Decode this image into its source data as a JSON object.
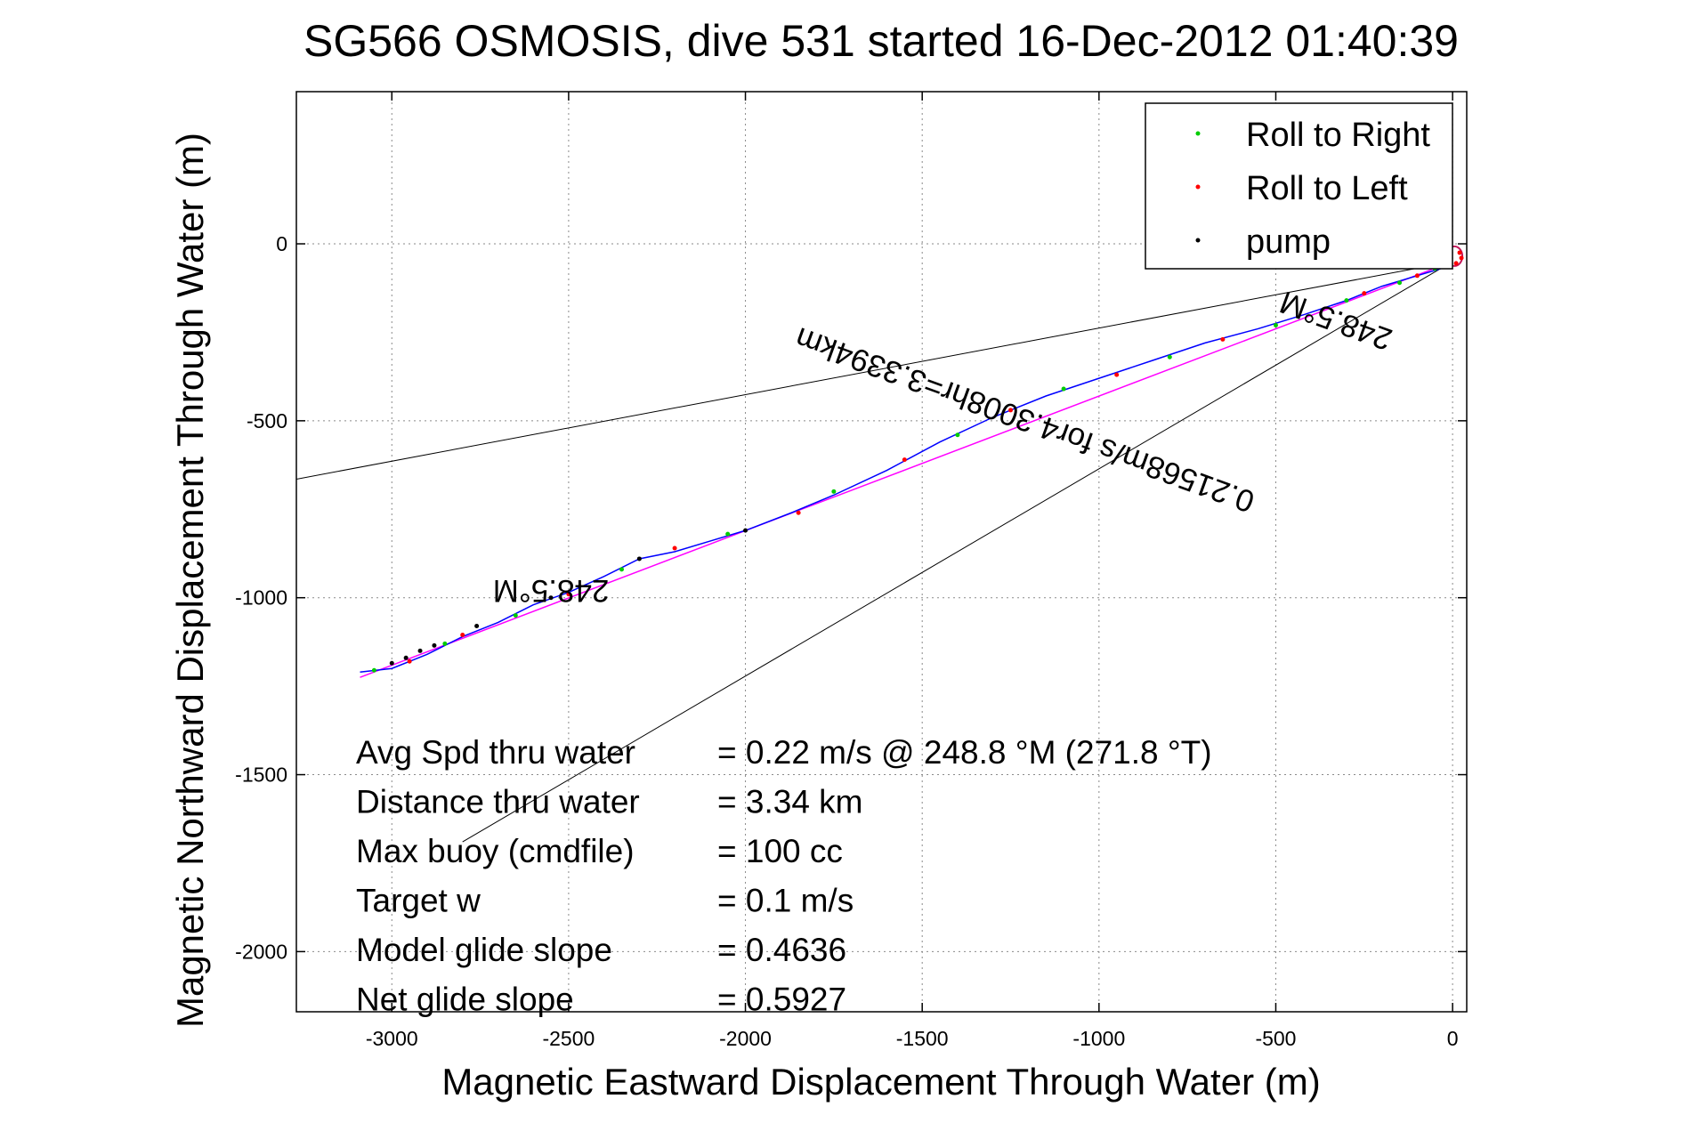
{
  "chart_data": {
    "type": "line",
    "title": "SG566 OSMOSIS, dive 531 started 16-Dec-2012 01:40:39",
    "xlabel": "Magnetic Eastward Displacement Through Water (m)",
    "ylabel": "Magnetic Northward Displacement Through Water (m)",
    "xlim": [
      -3270,
      40
    ],
    "ylim": [
      -2170,
      430
    ],
    "grid": true,
    "x_ticks": [
      -3000,
      -2500,
      -2000,
      -1500,
      -1000,
      -500,
      0
    ],
    "x_tick_labels": [
      "-3000",
      "-2500",
      "-2000",
      "-1500",
      "-1000",
      "-500",
      "0"
    ],
    "y_ticks": [
      0,
      -500,
      -1000,
      -1500,
      -2000
    ],
    "y_tick_labels": [
      "0",
      "-500",
      "-1000",
      "-1500",
      "-2000"
    ],
    "legend": {
      "position": "top-right",
      "entries": [
        {
          "label": "Roll to Right",
          "color": "#00cc00"
        },
        {
          "label": "Roll to Left",
          "color": "#ff0000"
        },
        {
          "label": "pump",
          "color": "#000000"
        }
      ]
    },
    "track": {
      "color": "#0000ff",
      "points": [
        [
          0,
          -60
        ],
        [
          -100,
          -90
        ],
        [
          -200,
          -120
        ],
        [
          -300,
          -160
        ],
        [
          -420,
          -200
        ],
        [
          -550,
          -240
        ],
        [
          -700,
          -280
        ],
        [
          -850,
          -330
        ],
        [
          -1000,
          -380
        ],
        [
          -1150,
          -430
        ],
        [
          -1300,
          -490
        ],
        [
          -1450,
          -560
        ],
        [
          -1600,
          -640
        ],
        [
          -1750,
          -710
        ],
        [
          -1870,
          -760
        ],
        [
          -2000,
          -810
        ],
        [
          -2100,
          -840
        ],
        [
          -2200,
          -870
        ],
        [
          -2300,
          -890
        ],
        [
          -2400,
          -940
        ],
        [
          -2500,
          -985
        ],
        [
          -2600,
          -1020
        ],
        [
          -2700,
          -1070
        ],
        [
          -2800,
          -1110
        ],
        [
          -2900,
          -1160
        ],
        [
          -3000,
          -1200
        ],
        [
          -3090,
          -1210
        ]
      ]
    },
    "model_line": {
      "color": "#ff00ff",
      "points": [
        [
          0,
          -50
        ],
        [
          -3090,
          -1225
        ]
      ]
    },
    "envelope_lines": [
      {
        "color": "#000000",
        "points": [
          [
            0,
            -50
          ],
          [
            -3270,
            -665
          ]
        ]
      },
      {
        "color": "#000000",
        "points": [
          [
            0,
            -50
          ],
          [
            -2800,
            -1690
          ]
        ]
      }
    ],
    "roll_right_points": [
      [
        -50,
        -70
      ],
      [
        -150,
        -110
      ],
      [
        -300,
        -160
      ],
      [
        -500,
        -230
      ],
      [
        -800,
        -320
      ],
      [
        -1100,
        -410
      ],
      [
        -1400,
        -540
      ],
      [
        -1750,
        -700
      ],
      [
        -2050,
        -820
      ],
      [
        -2350,
        -920
      ],
      [
        -2650,
        -1050
      ],
      [
        -2850,
        -1130
      ],
      [
        -3050,
        -1205
      ]
    ],
    "roll_left_points": [
      [
        -100,
        -90
      ],
      [
        -250,
        -140
      ],
      [
        -650,
        -270
      ],
      [
        -950,
        -370
      ],
      [
        -1250,
        -470
      ],
      [
        -1550,
        -610
      ],
      [
        -1850,
        -760
      ],
      [
        -2200,
        -860
      ],
      [
        -2500,
        -990
      ],
      [
        -2800,
        -1105
      ],
      [
        -2950,
        -1180
      ],
      [
        20,
        -25
      ],
      [
        25,
        -40
      ],
      [
        10,
        -55
      ]
    ],
    "pump_points": [
      [
        -3000,
        -1185
      ],
      [
        -2960,
        -1170
      ],
      [
        -2920,
        -1150
      ],
      [
        -2880,
        -1135
      ],
      [
        -2000,
        -810
      ],
      [
        -2300,
        -890
      ],
      [
        -2550,
        -1000
      ],
      [
        -2760,
        -1080
      ]
    ],
    "annotations": [
      {
        "text": "248.5°M",
        "x": -2550,
        "y": -950,
        "rotation": 180
      },
      {
        "text": "0.21568m/s for4.3008hr=3.3394km",
        "x": -1200,
        "y": -470,
        "rotation": 200
      },
      {
        "text": "248.5°M",
        "x": -320,
        "y": -190,
        "rotation": 200
      }
    ],
    "stats": [
      {
        "label": "Avg Spd thru water",
        "value": "=  0.22 m/s @ 248.8 °M (271.8 °T)"
      },
      {
        "label": "Distance thru water",
        "value": "=  3.34 km"
      },
      {
        "label": "Max buoy (cmdfile)",
        "value": "= 100 cc"
      },
      {
        "label": "Target w",
        "value": "= 0.1 m/s"
      },
      {
        "label": "Model glide slope",
        "value": "= 0.4636"
      },
      {
        "label": "Net glide slope",
        "value": "= 0.5927"
      }
    ]
  }
}
